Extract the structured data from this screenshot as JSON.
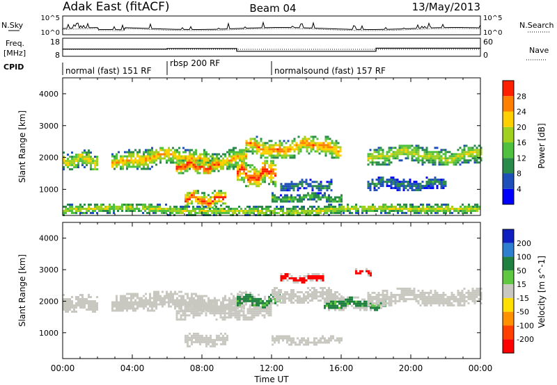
{
  "header": {
    "radar": "Adak East (fitACF)",
    "beam": "Beam 04",
    "date": "13/May/2013"
  },
  "summary_panel": {
    "nsky_label": "N.Sky",
    "nsky_ticks": [
      "10^5",
      "10^0"
    ],
    "nsearch_label": "N.Search",
    "nsearch_ticks": [
      "10^5",
      "10^0"
    ],
    "freq_label_line1": "Freq.",
    "freq_label_line2": "[MHz]",
    "freq_ticks": [
      "18",
      "8"
    ],
    "nave_label": "Nave",
    "nave_ticks": [
      "60",
      "0"
    ],
    "cpid_label": "CPID"
  },
  "cpid_segments": [
    {
      "label": "normal (fast) 151 RF",
      "start_hour": 0,
      "end_hour": 6
    },
    {
      "label": "rbsp 200 RF",
      "start_hour": 6,
      "end_hour": 12
    },
    {
      "label": "normalsound (fast) 157 RF",
      "start_hour": 12,
      "end_hour": 24
    }
  ],
  "frequency_steps": [
    {
      "start_hour": 0,
      "end_hour": 6,
      "freq_mhz": 12.2
    },
    {
      "start_hour": 6,
      "end_hour": 10,
      "freq_mhz": 12.6
    },
    {
      "start_hour": 10,
      "end_hour": 18,
      "freq_mhz": 10.6
    },
    {
      "start_hour": 18,
      "end_hour": 24,
      "freq_mhz": 12.8
    }
  ],
  "x_axis": {
    "label": "Time UT",
    "ticks": [
      "00:00",
      "04:00",
      "08:00",
      "12:00",
      "16:00",
      "20:00",
      "00:00"
    ],
    "range_hours": [
      0,
      24
    ]
  },
  "chart_data": [
    {
      "type": "heatmap",
      "quantity": "Power",
      "ylabel": "Slant Range [km]",
      "yticks": [
        "1000",
        "2000",
        "3000",
        "4000"
      ],
      "ylim": [
        180,
        4500
      ],
      "colorbar_label": "Power [dB]",
      "colorbar_ticks": [
        "4",
        "8",
        "12",
        "16",
        "20",
        "24",
        "28"
      ],
      "colorbar_colors": [
        "#0000ff",
        "#1f4fb8",
        "#2a8a4a",
        "#50c040",
        "#a0d020",
        "#ffd000",
        "#ff8000",
        "#ff2000"
      ],
      "regions": [
        {
          "t_start": 0.0,
          "t_end": 2.0,
          "r_center": 1950,
          "r_half": 300,
          "peak_db": 22
        },
        {
          "t_start": 2.8,
          "t_end": 10.5,
          "r_center": 2000,
          "r_half": 330,
          "peak_db": 24
        },
        {
          "t_start": 6.5,
          "t_end": 9.0,
          "r_center": 1750,
          "r_half": 250,
          "peak_db": 30
        },
        {
          "t_start": 7.0,
          "t_end": 9.3,
          "r_center": 700,
          "r_half": 280,
          "peak_db": 30
        },
        {
          "t_start": 10.0,
          "t_end": 12.2,
          "r_center": 1500,
          "r_half": 420,
          "peak_db": 30
        },
        {
          "t_start": 10.5,
          "t_end": 16.0,
          "r_center": 2350,
          "r_half": 330,
          "peak_db": 26
        },
        {
          "t_start": 12.0,
          "t_end": 16.0,
          "r_center": 750,
          "r_half": 160,
          "peak_db": 14
        },
        {
          "t_start": 12.5,
          "t_end": 15.5,
          "r_center": 1150,
          "r_half": 180,
          "peak_db": 10
        },
        {
          "t_start": 17.5,
          "t_end": 24.0,
          "r_center": 2100,
          "r_half": 300,
          "peak_db": 20
        },
        {
          "t_start": 17.5,
          "t_end": 22.0,
          "r_center": 1200,
          "r_half": 200,
          "peak_db": 10
        },
        {
          "t_start": 0.0,
          "t_end": 24.0,
          "r_center": 380,
          "r_half": 170,
          "peak_db": 20
        }
      ]
    },
    {
      "type": "heatmap",
      "quantity": "Velocity",
      "ylabel": "Slant Range [km]",
      "yticks": [
        "1000",
        "2000",
        "3000",
        "4000"
      ],
      "ylim": [
        180,
        4500
      ],
      "colorbar_label": "Velocity [m s^-1]",
      "colorbar_ticks": [
        "200",
        "100",
        "50",
        "15",
        "-15",
        "-50",
        "-100",
        "-200"
      ],
      "colorbar_colors": [
        "#1020c0",
        "#2f7fd0",
        "#208040",
        "#60c840",
        "#c8c8c0",
        "#ffe000",
        "#ff9000",
        "#ff4000",
        "#ff0000"
      ],
      "regions": [
        {
          "t_start": 0.0,
          "t_end": 2.0,
          "r_center": 1950,
          "r_half": 280,
          "velocity": 0
        },
        {
          "t_start": 2.8,
          "t_end": 10.5,
          "r_center": 2000,
          "r_half": 330,
          "velocity": 0
        },
        {
          "t_start": 6.5,
          "t_end": 12.0,
          "r_center": 1700,
          "r_half": 280,
          "velocity": 0
        },
        {
          "t_start": 10.0,
          "t_end": 12.5,
          "r_center": 2050,
          "r_half": 250,
          "velocity": 40
        },
        {
          "t_start": 12.5,
          "t_end": 15.0,
          "r_center": 2750,
          "r_half": 140,
          "velocity": -220
        },
        {
          "t_start": 12.0,
          "t_end": 16.0,
          "r_center": 2200,
          "r_half": 250,
          "velocity": 0
        },
        {
          "t_start": 16.8,
          "t_end": 17.7,
          "r_center": 2950,
          "r_half": 100,
          "velocity": -220
        },
        {
          "t_start": 15.0,
          "t_end": 18.5,
          "r_center": 1950,
          "r_half": 200,
          "velocity": 40
        },
        {
          "t_start": 17.5,
          "t_end": 24.0,
          "r_center": 2150,
          "r_half": 280,
          "velocity": 0
        },
        {
          "t_start": 7.0,
          "t_end": 9.5,
          "r_center": 800,
          "r_half": 200,
          "velocity": 0
        },
        {
          "t_start": 12.0,
          "t_end": 16.0,
          "r_center": 780,
          "r_half": 140,
          "velocity": 0
        }
      ]
    }
  ]
}
